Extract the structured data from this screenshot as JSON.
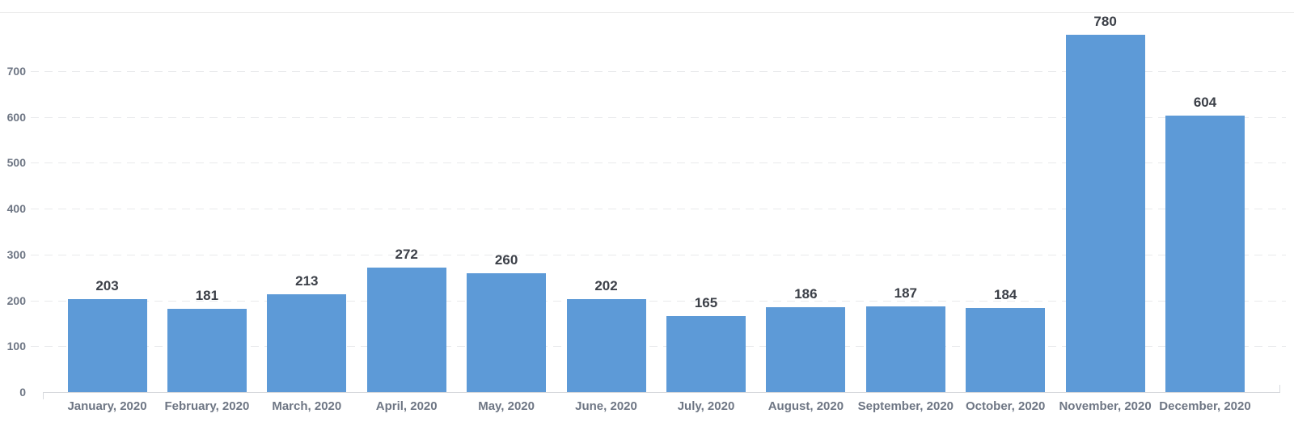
{
  "chart_data": {
    "type": "bar",
    "title": "",
    "categories": [
      "January, 2020",
      "February, 2020",
      "March, 2020",
      "April, 2020",
      "May, 2020",
      "June, 2020",
      "July, 2020",
      "August, 2020",
      "September, 2020",
      "October, 2020",
      "November, 2020",
      "December, 2020"
    ],
    "values": [
      203,
      181,
      213,
      272,
      260,
      202,
      165,
      186,
      187,
      184,
      780,
      604
    ],
    "yticks": [
      0,
      100,
      200,
      300,
      400,
      500,
      600,
      700
    ],
    "ylim": [
      0,
      828
    ],
    "xlabel": "",
    "ylabel": "",
    "legend": "none",
    "grid": "horizontal-dashed",
    "colors": {
      "bar": "#5d9ad7",
      "value_label": "#3c4048",
      "axis_label": "#6e7684",
      "gridline": "#e9eaec",
      "axis_line": "#d7d9dd",
      "top_border": "#ececec"
    }
  }
}
